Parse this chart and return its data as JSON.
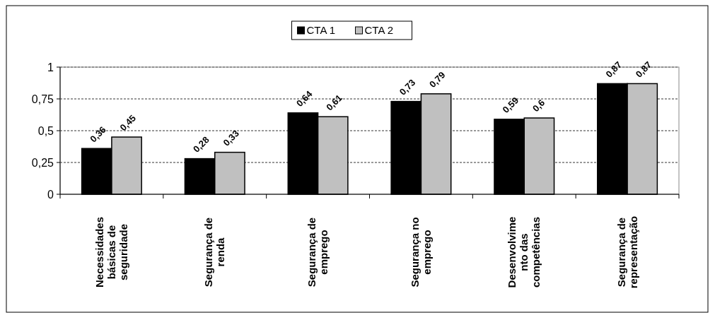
{
  "chart_data": {
    "type": "bar",
    "categories": [
      "Necessidades\nbásicas de\nseguridade",
      "Segurança de\nrenda",
      "Segurança de\nemprego",
      "Segurança no\nemprego",
      "Desenvolvime\nnto das\ncompetências",
      "Segurança de\nrepresentação"
    ],
    "series": [
      {
        "name": "CTA 1",
        "color": "#000000",
        "values": [
          0.36,
          0.28,
          0.64,
          0.73,
          0.59,
          0.87
        ]
      },
      {
        "name": "CTA 2",
        "color": "#c0c0c0",
        "values": [
          0.45,
          0.33,
          0.61,
          0.79,
          0.6,
          0.87
        ]
      }
    ],
    "ylim": [
      0,
      1
    ],
    "yticks": [
      {
        "value": 0,
        "label": "0"
      },
      {
        "value": 0.25,
        "label": "0,25"
      },
      {
        "value": 0.5,
        "label": "0,5"
      },
      {
        "value": 0.75,
        "label": "0,75"
      },
      {
        "value": 1,
        "label": "1"
      }
    ],
    "value_labels": [
      [
        "0,36",
        "0,28",
        "0,64",
        "0,73",
        "0,59",
        "0,87"
      ],
      [
        "0,45",
        "0,33",
        "0,61",
        "0,79",
        "0,6",
        "0,87"
      ]
    ],
    "grid": "y",
    "legend": "top"
  }
}
